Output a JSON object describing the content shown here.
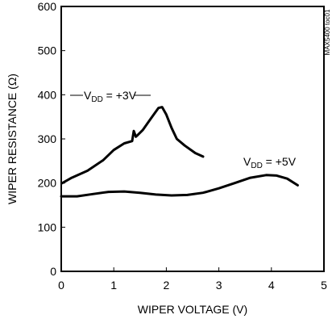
{
  "chart_data": {
    "type": "line",
    "xlabel": "WIPER VOLTAGE (V)",
    "ylabel": "WIPER RESISTANCE (Ω)",
    "xlim": [
      0,
      5
    ],
    "ylim": [
      0,
      600
    ],
    "x_ticks": [
      "0",
      "1",
      "2",
      "3",
      "4",
      "5"
    ],
    "y_ticks": [
      "0",
      "100",
      "200",
      "300",
      "400",
      "500",
      "600"
    ],
    "grid": false,
    "legend": "inline labels",
    "figure_code": "MAX5400 toc01",
    "series": [
      {
        "name": "VDD = +3V",
        "label_parts": {
          "pre": "V",
          "sub": "DD",
          "post": " = +3V"
        },
        "x": [
          0.02,
          0.2,
          0.5,
          0.8,
          1.0,
          1.2,
          1.35,
          1.38,
          1.42,
          1.45,
          1.55,
          1.7,
          1.85,
          1.92,
          2.0,
          2.1,
          2.2,
          2.35,
          2.55,
          2.7
        ],
        "values": [
          200,
          212,
          228,
          252,
          275,
          290,
          295,
          318,
          305,
          308,
          320,
          345,
          370,
          372,
          355,
          325,
          300,
          285,
          268,
          260
        ]
      },
      {
        "name": "VDD = +5V",
        "label_parts": {
          "pre": "V",
          "sub": "DD",
          "post": " = +5V"
        },
        "x": [
          0.0,
          0.3,
          0.6,
          0.9,
          1.2,
          1.5,
          1.8,
          2.1,
          2.4,
          2.7,
          3.0,
          3.3,
          3.6,
          3.9,
          4.1,
          4.3,
          4.5
        ],
        "values": [
          170,
          170,
          175,
          180,
          181,
          178,
          174,
          172,
          173,
          178,
          188,
          200,
          212,
          218,
          217,
          210,
          195
        ]
      }
    ]
  }
}
